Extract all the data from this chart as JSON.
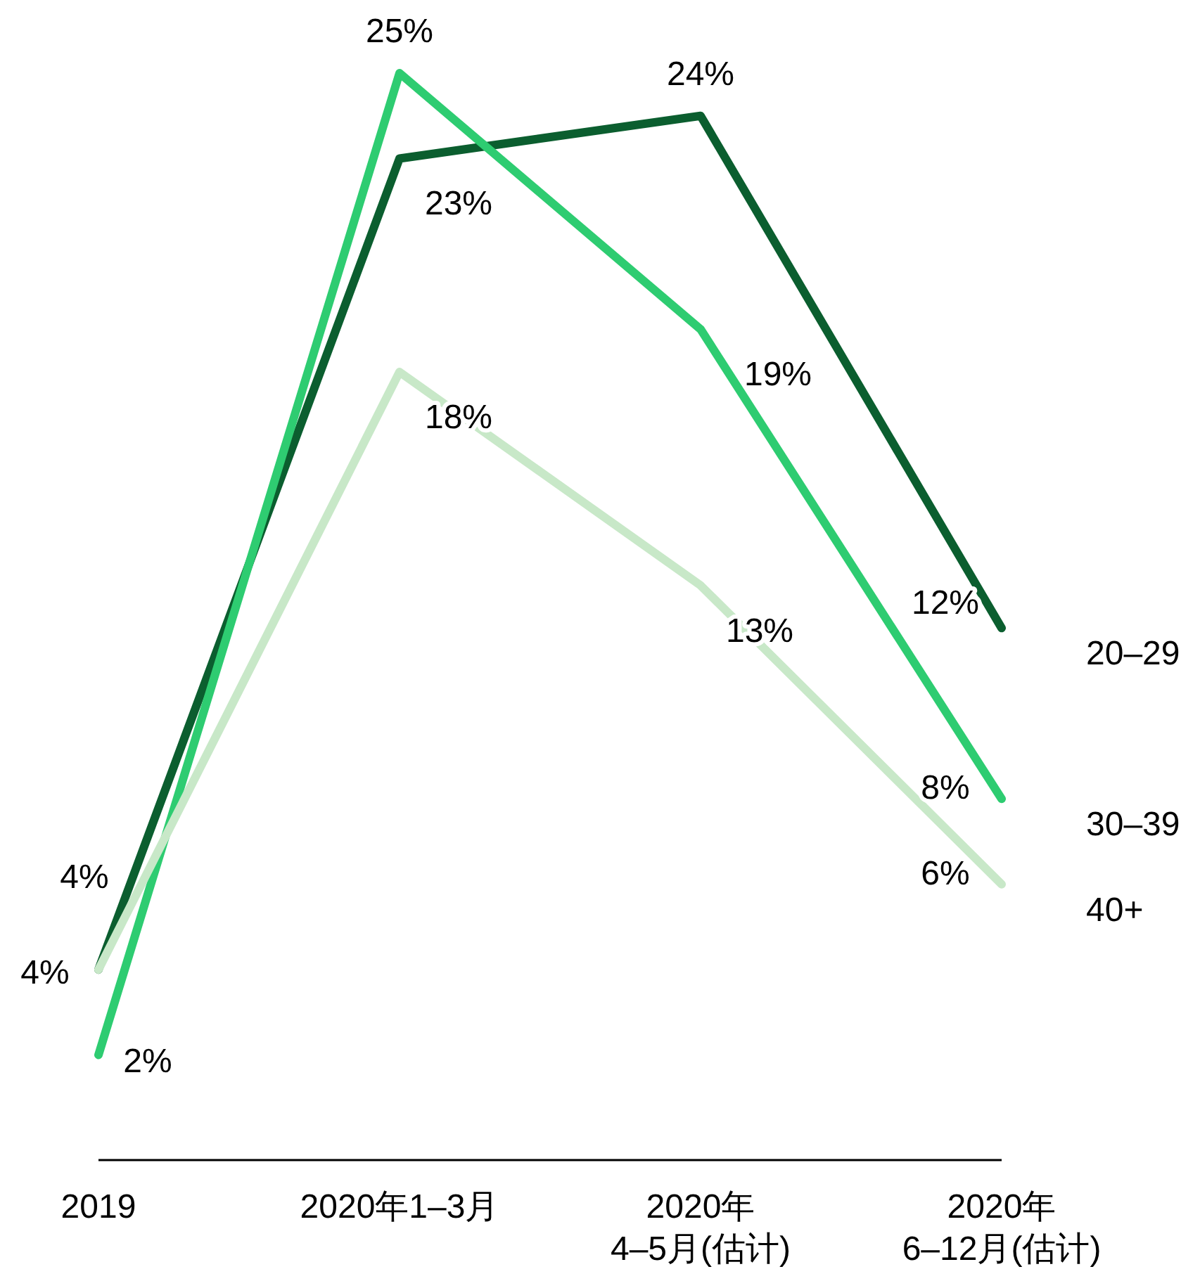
{
  "chart_data": {
    "type": "line",
    "categories": [
      "2019",
      "2020年1–3月",
      "2020年\n4–5月(估计)",
      "2020年\n6–12月(估计)"
    ],
    "series": [
      {
        "name": "20–29",
        "color": "#0b5e2f",
        "values": [
          4,
          23,
          24,
          12
        ],
        "value_labels": [
          "4%",
          "23%",
          "24%",
          "12%"
        ]
      },
      {
        "name": "30–39",
        "color": "#2ecc71",
        "values": [
          2,
          25,
          19,
          8
        ],
        "value_labels": [
          "2%",
          "25%",
          "19%",
          "8%"
        ]
      },
      {
        "name": "40+",
        "color": "#c8e8c8",
        "values": [
          4,
          18,
          13,
          6
        ],
        "value_labels": [
          "4%",
          "18%",
          "13%",
          "6%"
        ]
      }
    ]
  }
}
